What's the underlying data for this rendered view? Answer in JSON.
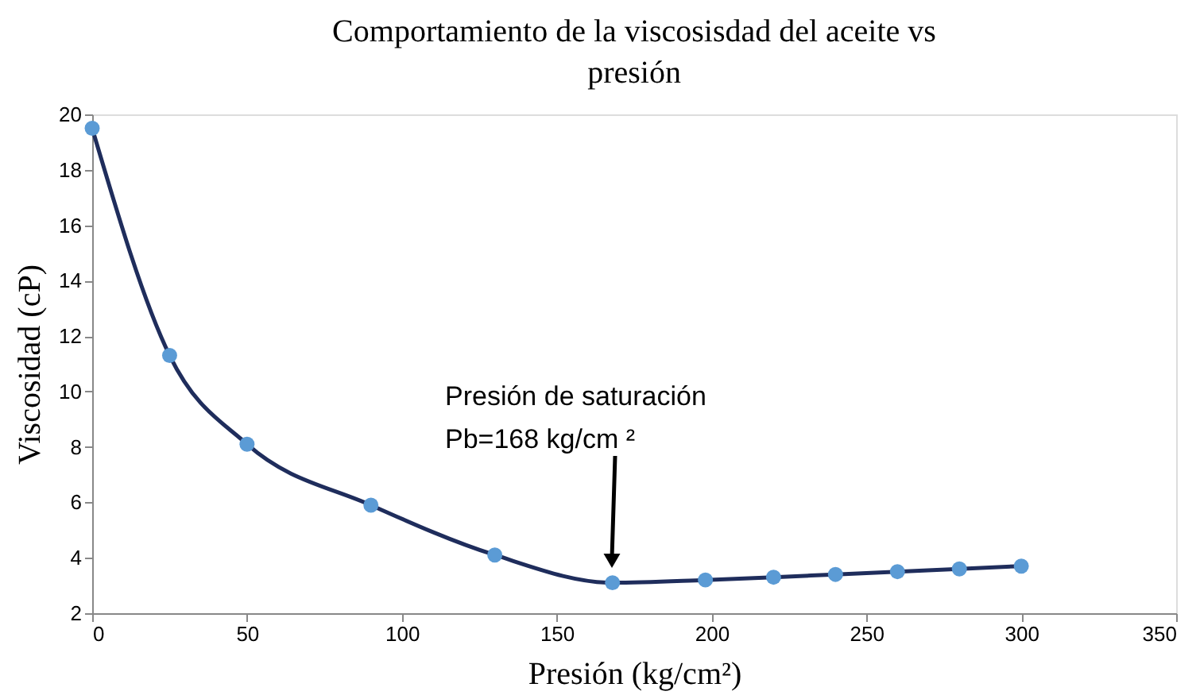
{
  "chart_data": {
    "type": "line",
    "title": "Comportamiento de la viscosisdad del aceite vs presión",
    "xlabel": "Presión (kg/cm²)",
    "ylabel": "Viscosidad (cP)",
    "x": [
      0,
      25,
      50,
      90,
      130,
      168,
      198,
      220,
      240,
      260,
      280,
      300
    ],
    "series": [
      {
        "color": "#1f2d5c",
        "marker": "none",
        "values": [
          19.5,
          11.3,
          8.1,
          5.9,
          4.1,
          3.1,
          3.2,
          3.3,
          3.4,
          3.5,
          3.6,
          3.7
        ]
      },
      {
        "type": "scatter",
        "color": "#5b9bd5",
        "marker": "circle",
        "values": [
          19.5,
          11.3,
          8.1,
          5.9,
          4.1,
          3.1,
          3.2,
          3.3,
          3.4,
          3.5,
          3.6,
          3.7
        ]
      }
    ],
    "annotations": [
      "Presión de saturación\nPb=168 kg/cm ²"
    ],
    "xlim": [
      0,
      350
    ],
    "xticks": [
      0,
      50,
      100,
      150,
      200,
      250,
      300,
      350
    ],
    "ylim": [
      2,
      20
    ],
    "yticks": [
      2,
      4,
      6,
      8,
      10,
      12,
      14,
      16,
      18,
      20
    ],
    "grid": false
  }
}
